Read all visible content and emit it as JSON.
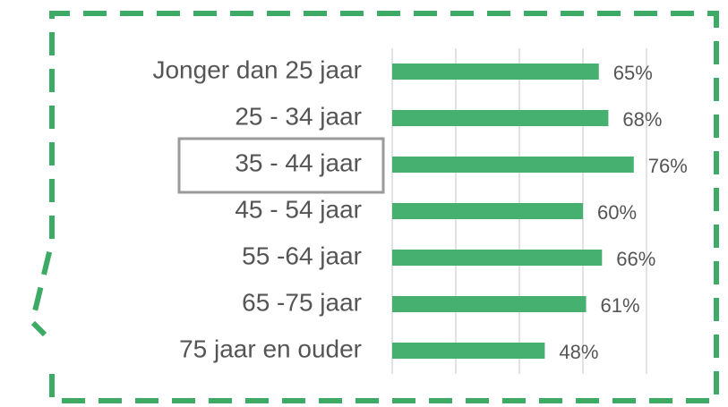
{
  "chart_data": {
    "type": "bar",
    "orientation": "horizontal",
    "categories": [
      "Jonger dan 25 jaar",
      "25 - 34 jaar",
      "35 - 44 jaar",
      "45 - 54 jaar",
      "55 -64 jaar",
      "65 -75 jaar",
      "75 jaar en ouder"
    ],
    "values": [
      65,
      68,
      76,
      60,
      66,
      61,
      48
    ],
    "value_labels": [
      "65%",
      "68%",
      "76%",
      "60%",
      "66%",
      "61%",
      "48%"
    ],
    "color": "#46b070",
    "xlim": [
      0,
      80
    ],
    "xticks": [
      0,
      20,
      40,
      60,
      80
    ],
    "grid": true
  }
}
